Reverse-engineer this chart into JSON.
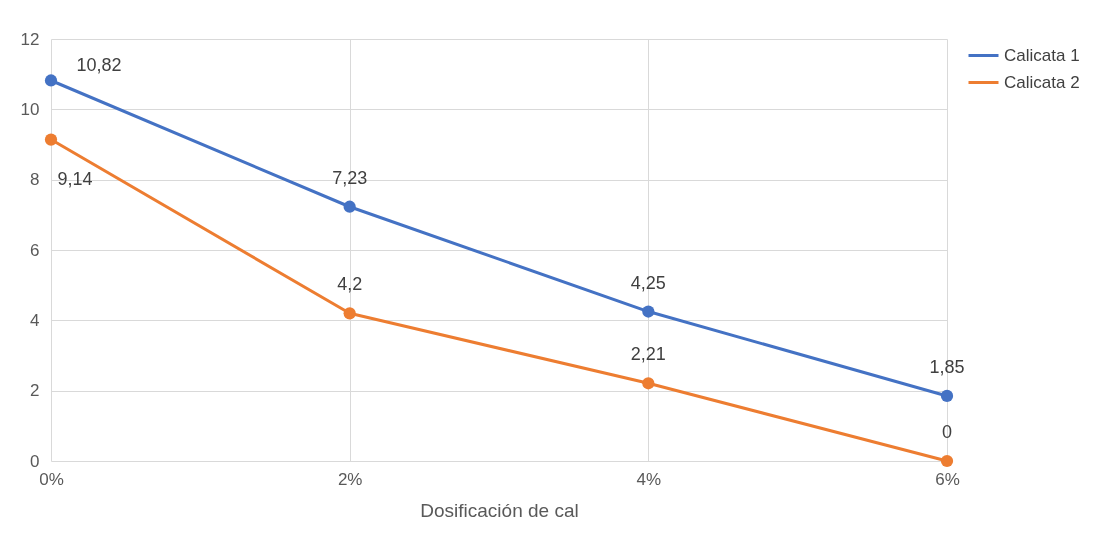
{
  "chart_data": {
    "type": "line",
    "xlabel": "Dosificación de cal",
    "categories": [
      "0%",
      "2%",
      "4%",
      "6%"
    ],
    "series": [
      {
        "name": "Calicata 1",
        "color": "#4472c4",
        "values": [
          10.82,
          7.23,
          4.25,
          1.85
        ],
        "value_labels": [
          "10,82",
          "7,23",
          "4,25",
          "1,85"
        ]
      },
      {
        "name": "Calicata 2",
        "color": "#ed7d31",
        "values": [
          9.14,
          4.2,
          2.21,
          0
        ],
        "value_labels": [
          "9,14",
          "4,2",
          "2,21",
          "0"
        ]
      }
    ],
    "ylim": [
      0,
      12
    ],
    "yticks": [
      0,
      2,
      4,
      6,
      8,
      10,
      12
    ],
    "grid": true,
    "legend": "right",
    "marker": "circle",
    "line_style": "solid"
  }
}
